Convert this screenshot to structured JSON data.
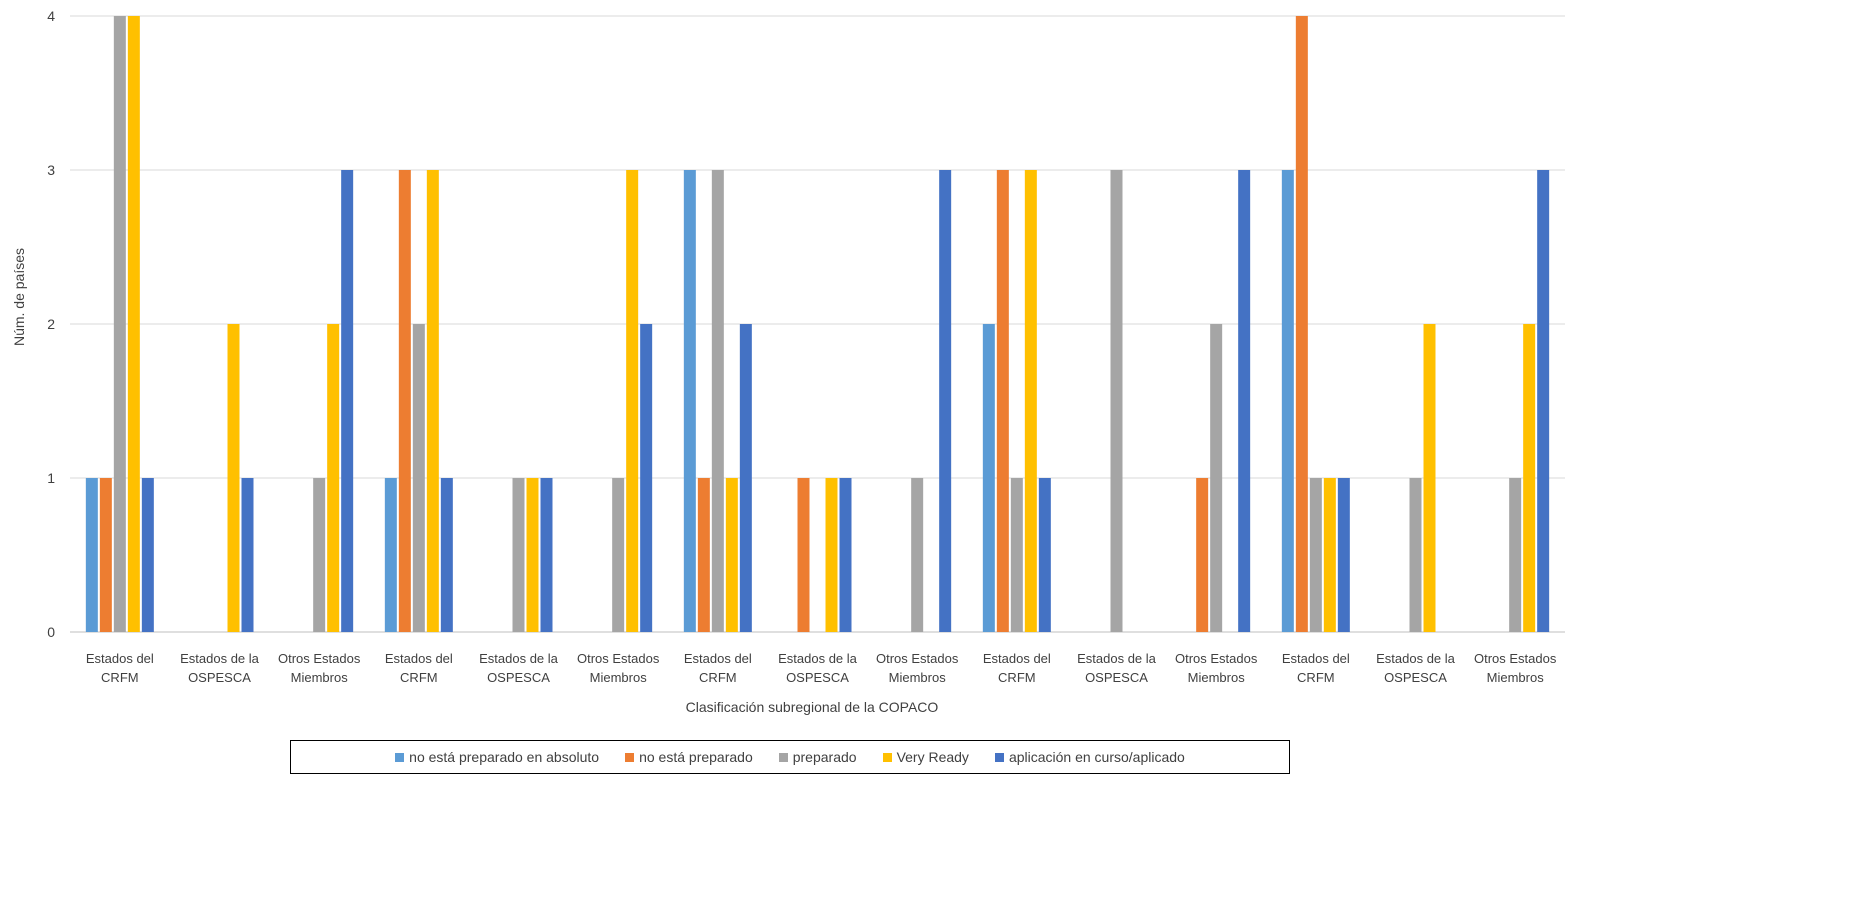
{
  "chart_data": {
    "type": "bar",
    "title": "",
    "xlabel": "Clasificación subregional de la COPACO",
    "ylabel": "Núm. de países",
    "ylim": [
      0,
      4
    ],
    "yticks": [
      0,
      1,
      2,
      3,
      4
    ],
    "grid": true,
    "legend_position": "bottom",
    "categories": [
      [
        "Estados del",
        "CRFM"
      ],
      [
        "Estados de la",
        "OSPESCA"
      ],
      [
        "Otros Estados",
        "Miembros"
      ],
      [
        "Estados del",
        "CRFM"
      ],
      [
        "Estados de la",
        "OSPESCA"
      ],
      [
        "Otros Estados",
        "Miembros"
      ],
      [
        "Estados del",
        "CRFM"
      ],
      [
        "Estados de la",
        "OSPESCA"
      ],
      [
        "Otros Estados",
        "Miembros"
      ],
      [
        "Estados del",
        "CRFM"
      ],
      [
        "Estados de la",
        "OSPESCA"
      ],
      [
        "Otros Estados",
        "Miembros"
      ],
      [
        "Estados del",
        "CRFM"
      ],
      [
        "Estados de la",
        "OSPESCA"
      ],
      [
        "Otros Estados",
        "Miembros"
      ]
    ],
    "series": [
      {
        "name": "no está preparado en absoluto",
        "color": "#5B9BD5",
        "values": [
          1,
          0,
          0,
          1,
          0,
          0,
          3,
          0,
          0,
          2,
          0,
          0,
          3,
          0,
          0
        ]
      },
      {
        "name": "no está preparado",
        "color": "#ED7D31",
        "values": [
          1,
          0,
          0,
          3,
          0,
          0,
          1,
          1,
          0,
          3,
          0,
          1,
          4,
          0,
          0
        ]
      },
      {
        "name": "preparado",
        "color": "#A5A5A5",
        "values": [
          4,
          0,
          1,
          2,
          1,
          1,
          3,
          0,
          1,
          1,
          3,
          2,
          1,
          1,
          1
        ]
      },
      {
        "name": "Very Ready",
        "color": "#FFC000",
        "values": [
          4,
          2,
          2,
          3,
          1,
          3,
          1,
          1,
          0,
          3,
          0,
          0,
          1,
          2,
          2
        ]
      },
      {
        "name": "aplicación en curso/aplicado",
        "color": "#4472C4",
        "values": [
          1,
          1,
          3,
          1,
          1,
          2,
          2,
          1,
          3,
          1,
          0,
          3,
          1,
          0,
          3
        ]
      }
    ]
  }
}
